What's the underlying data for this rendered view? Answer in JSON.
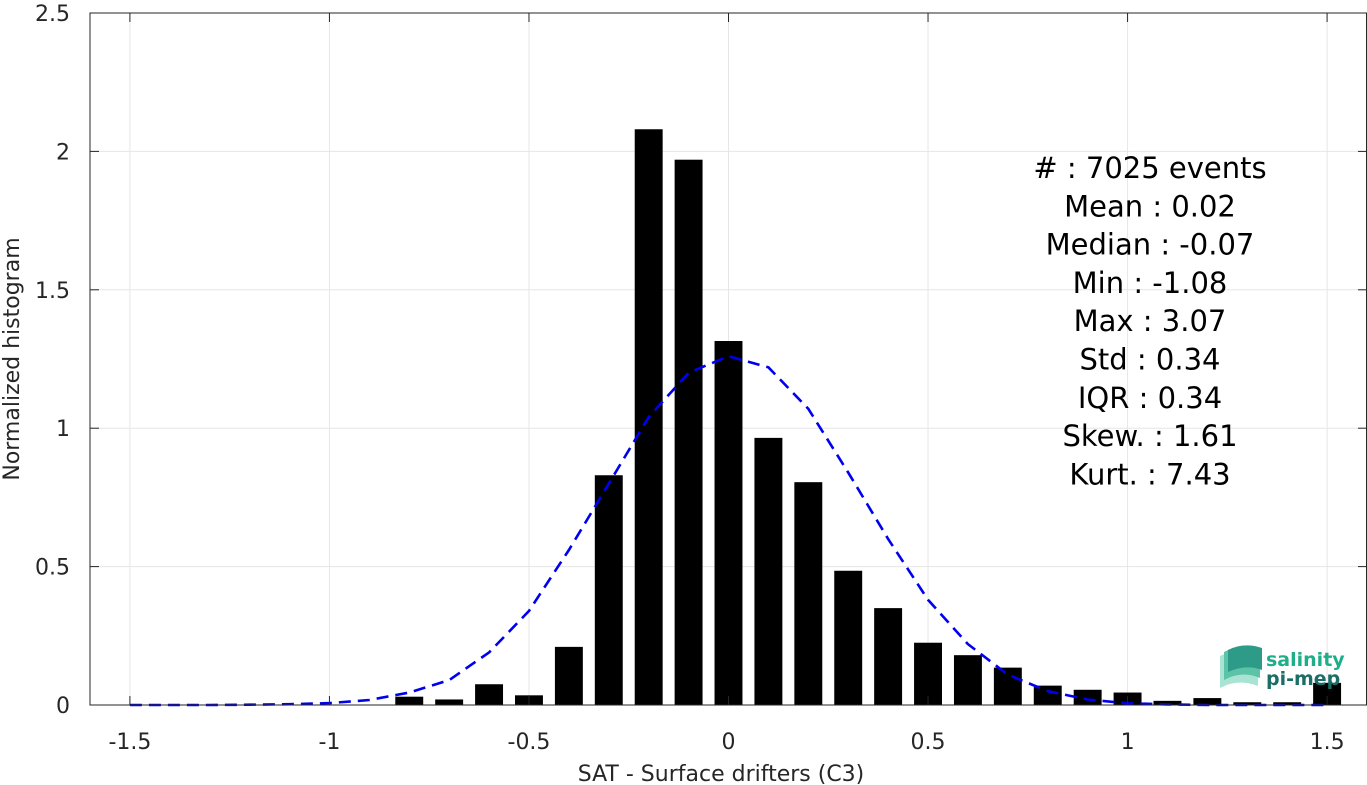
{
  "chart_data": {
    "type": "bar",
    "xlabel": "SAT - Surface drifters (C3)",
    "ylabel": "Normalized histogram",
    "xlim": [
      -1.6,
      1.6
    ],
    "ylim": [
      0,
      2.5
    ],
    "grid": true,
    "xticks": [
      -1.5,
      -1,
      -0.5,
      0,
      0.5,
      1,
      1.5
    ],
    "xtick_labels": [
      "-1.5",
      "-1",
      "-0.5",
      "0",
      "0.5",
      "1",
      "1.5"
    ],
    "yticks": [
      0,
      0.5,
      1,
      1.5,
      2,
      2.5
    ],
    "ytick_labels": [
      "0",
      "0.5",
      "1",
      "1.5",
      "2",
      "2.5"
    ],
    "bar_width": 0.07,
    "bar_color": "#000000",
    "histogram": {
      "x": [
        -0.8,
        -0.7,
        -0.6,
        -0.5,
        -0.4,
        -0.3,
        -0.2,
        -0.1,
        0.0,
        0.1,
        0.2,
        0.3,
        0.4,
        0.5,
        0.6,
        0.7,
        0.8,
        0.9,
        1.0,
        1.1,
        1.2,
        1.3,
        1.4,
        1.5
      ],
      "values": [
        0.03,
        0.02,
        0.075,
        0.035,
        0.21,
        0.83,
        2.08,
        1.97,
        1.315,
        0.965,
        0.805,
        0.485,
        0.35,
        0.225,
        0.18,
        0.135,
        0.07,
        0.055,
        0.045,
        0.015,
        0.025,
        0.01,
        0.01,
        0.08
      ]
    },
    "fit_curve": {
      "style": "dashed",
      "color": "#0000ee",
      "x": [
        -1.5,
        -1.4,
        -1.3,
        -1.2,
        -1.1,
        -1.0,
        -0.9,
        -0.8,
        -0.7,
        -0.6,
        -0.5,
        -0.4,
        -0.3,
        -0.2,
        -0.1,
        0.0,
        0.1,
        0.2,
        0.3,
        0.4,
        0.5,
        0.6,
        0.7,
        0.8,
        0.9,
        1.0,
        1.1,
        1.2,
        1.3,
        1.4,
        1.5
      ],
      "y": [
        0.0,
        0.0,
        0.0,
        0.001,
        0.003,
        0.007,
        0.018,
        0.045,
        0.09,
        0.19,
        0.34,
        0.56,
        0.8,
        1.04,
        1.2,
        1.26,
        1.22,
        1.07,
        0.84,
        0.6,
        0.38,
        0.22,
        0.11,
        0.05,
        0.02,
        0.006,
        0.002,
        0.0,
        0.0,
        0.0,
        0.0
      ]
    },
    "stats": [
      "#  : 7025 events",
      "Mean : 0.02",
      "Median : -0.07",
      "Min : -1.08",
      "Max : 3.07",
      "Std : 0.34",
      "IQR : 0.34",
      "Skew. : 1.61",
      "Kurt. : 7.43"
    ],
    "logo": {
      "line1": "salinity",
      "line2": "pi-mep",
      "color_line1": "#1fae8a",
      "color_line2": "#1a6e66"
    }
  }
}
